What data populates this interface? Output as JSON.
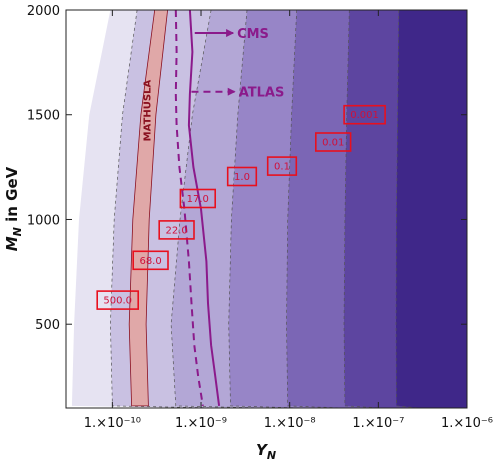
{
  "chart_data": {
    "type": "area",
    "title": "",
    "xlabel": "Y_N",
    "ylabel": "M_N in GeV",
    "x_scale": "log",
    "xlim": [
      3e-11,
      1e-06
    ],
    "ylim": [
      100,
      2000
    ],
    "x_ticks": [
      {
        "value": 1e-10,
        "label": "1.×10⁻¹⁰"
      },
      {
        "value": 1e-09,
        "label": "1.×10⁻⁹"
      },
      {
        "value": 1e-08,
        "label": "1.×10⁻⁸"
      },
      {
        "value": 1e-07,
        "label": "1.×10⁻⁷"
      },
      {
        "value": 1e-06,
        "label": "1.×10⁻⁶"
      }
    ],
    "y_ticks": [
      {
        "value": 500,
        "label": "500"
      },
      {
        "value": 1000,
        "label": "1000"
      },
      {
        "value": 1500,
        "label": "1500"
      },
      {
        "value": 2000,
        "label": "2000"
      }
    ],
    "regions": [
      {
        "color": "#e6e3f2",
        "x": [
          9.5e-11,
          5.5e-11,
          4.2e-11,
          3.7e-11,
          3.5e-11
        ],
        "y": [
          2000,
          1500,
          1000,
          500,
          110
        ]
      },
      {
        "color": "#c9c1e2",
        "x": [
          1.9e-10,
          1.3e-10,
          1.05e-10,
          9.5e-11,
          1e-10
        ],
        "y": [
          2000,
          1500,
          1000,
          500,
          110
        ]
      },
      {
        "color": "#b3a7d6",
        "x": [
          1.3e-09,
          8e-10,
          5.8e-10,
          4.6e-10,
          5.2e-10
        ],
        "y": [
          2000,
          1500,
          1000,
          500,
          110
        ]
      },
      {
        "color": "#9785c7",
        "x": [
          3.3e-09,
          2.6e-09,
          2.2e-09,
          2.05e-09,
          2.15e-09
        ],
        "y": [
          2000,
          1500,
          1000,
          500,
          110
        ]
      },
      {
        "color": "#7b66b5",
        "x": [
          1.2e-08,
          1.05e-08,
          9.5e-09,
          9.2e-09,
          9.5e-09
        ],
        "y": [
          2000,
          1500,
          1000,
          500,
          110
        ]
      },
      {
        "color": "#5d45a0",
        "x": [
          4.7e-08,
          4.4e-08,
          4.2e-08,
          4.1e-08,
          4.2e-08
        ],
        "y": [
          2000,
          1500,
          1000,
          500,
          110
        ]
      },
      {
        "color": "#3f2789",
        "x": [
          1.7e-07,
          1.65e-07,
          1.6e-07,
          1.58e-07,
          1.6e-07
        ],
        "y": [
          2000,
          1500,
          1000,
          500,
          110
        ]
      }
    ],
    "mathusla_band": {
      "label": "MATHUSLA",
      "color": "#e0a8a8",
      "left": {
        "x": [
          3e-10,
          2.1e-10,
          1.7e-10,
          1.55e-10,
          1.65e-10
        ],
        "y": [
          2000,
          1500,
          1000,
          500,
          110
        ]
      },
      "right": {
        "x": [
          4.2e-10,
          3.1e-10,
          2.6e-10,
          2.4e-10,
          2.55e-10
        ],
        "y": [
          2000,
          1500,
          1000,
          500,
          110
        ]
      }
    },
    "series": [
      {
        "name": "CMS",
        "style": "solid",
        "color": "#8b1a8b",
        "x": [
          7.5e-10,
          8e-10,
          7.5e-10,
          7.3e-10,
          8.2e-10,
          1e-09,
          1.15e-09,
          1.2e-09,
          1.3e-09,
          1.45e-09,
          1.6e-09
        ],
        "y": [
          2000,
          1800,
          1600,
          1450,
          1250,
          1050,
          800,
          600,
          400,
          250,
          110
        ]
      },
      {
        "name": "ATLAS",
        "style": "dashed",
        "color": "#8b1a8b",
        "x": [
          5.2e-10,
          5.3e-10,
          5.2e-10,
          5.3e-10,
          5.7e-10,
          6.5e-10,
          7.3e-10,
          7.8e-10,
          8.4e-10,
          9.3e-10,
          1.05e-09
        ],
        "y": [
          2000,
          1800,
          1600,
          1450,
          1250,
          1050,
          800,
          600,
          400,
          250,
          110
        ]
      }
    ],
    "annotations": [
      {
        "text": "500.0",
        "x": 1.15e-10,
        "y": 615
      },
      {
        "text": "68.0",
        "x": 2.7e-10,
        "y": 805
      },
      {
        "text": "22.0",
        "x": 5.3e-10,
        "y": 950
      },
      {
        "text": "17.0",
        "x": 9.2e-10,
        "y": 1100
      },
      {
        "text": "1.0",
        "x": 2.9e-09,
        "y": 1205
      },
      {
        "text": "0.1",
        "x": 8.2e-09,
        "y": 1255
      },
      {
        "text": "0.01",
        "x": 3.1e-08,
        "y": 1370
      },
      {
        "text": "0.001",
        "x": 7e-08,
        "y": 1500
      }
    ],
    "legend": [
      {
        "text": "CMS",
        "style": "solid",
        "x_start": 8.5e-10,
        "x_end": 2.3e-09,
        "y": 1890
      },
      {
        "text": "ATLAS",
        "style": "dashed",
        "x_start": 7.8e-10,
        "x_end": 2.4e-09,
        "y": 1610
      }
    ],
    "grid": false,
    "legend_position": "top-center"
  }
}
